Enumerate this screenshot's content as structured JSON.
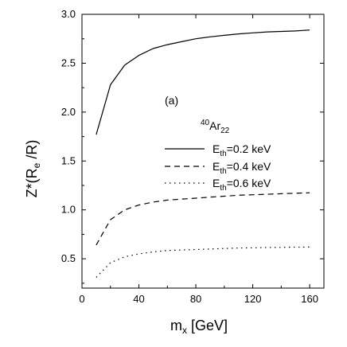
{
  "chart_data": {
    "type": "line",
    "panel_label": "(a)",
    "xlabel": {
      "main": "m",
      "sub": "x",
      "rest": " [GeV]"
    },
    "ylabel": {
      "p1": "Z*(R",
      "sub": "e",
      "p2": " /R)"
    },
    "xlim": [
      0,
      170
    ],
    "ylim": [
      0.2,
      3.0
    ],
    "xticks": [
      0,
      40,
      80,
      120,
      160
    ],
    "yticks": [
      0.5,
      1.0,
      1.5,
      2.0,
      2.5,
      3.0
    ],
    "xtick_labels": [
      "0",
      "40",
      "80",
      "120",
      "160"
    ],
    "ytick_labels": [
      "0.5",
      "1.0",
      "1.5",
      "2.0",
      "2.5",
      "3.0"
    ],
    "legend": {
      "header": {
        "sup": "40",
        "main": "Ar",
        "sub": "22"
      },
      "placement": "center-right"
    },
    "series": [
      {
        "name": {
          "main": "E",
          "sub": "th",
          "rest": "=0.2 keV"
        },
        "style": "solid",
        "x": [
          10,
          20,
          30,
          40,
          50,
          60,
          70,
          80,
          90,
          100,
          110,
          120,
          130,
          140,
          150,
          160
        ],
        "values": [
          1.77,
          2.28,
          2.48,
          2.58,
          2.65,
          2.69,
          2.72,
          2.75,
          2.77,
          2.785,
          2.8,
          2.81,
          2.82,
          2.825,
          2.83,
          2.84
        ]
      },
      {
        "name": {
          "main": "E",
          "sub": "th",
          "rest": "=0.4 keV"
        },
        "style": "dashed",
        "x": [
          10,
          20,
          30,
          40,
          50,
          60,
          70,
          80,
          90,
          100,
          110,
          120,
          130,
          140,
          150,
          160
        ],
        "values": [
          0.64,
          0.9,
          1.0,
          1.05,
          1.08,
          1.1,
          1.11,
          1.12,
          1.13,
          1.14,
          1.15,
          1.155,
          1.16,
          1.165,
          1.17,
          1.175
        ]
      },
      {
        "name": {
          "main": "E",
          "sub": "th",
          "rest": "=0.6 keV"
        },
        "style": "dotted",
        "x": [
          10,
          20,
          30,
          40,
          50,
          60,
          70,
          80,
          90,
          100,
          110,
          120,
          130,
          140,
          150,
          160
        ],
        "values": [
          0.31,
          0.46,
          0.52,
          0.55,
          0.57,
          0.585,
          0.59,
          0.595,
          0.6,
          0.605,
          0.61,
          0.612,
          0.615,
          0.617,
          0.619,
          0.62
        ]
      }
    ]
  }
}
